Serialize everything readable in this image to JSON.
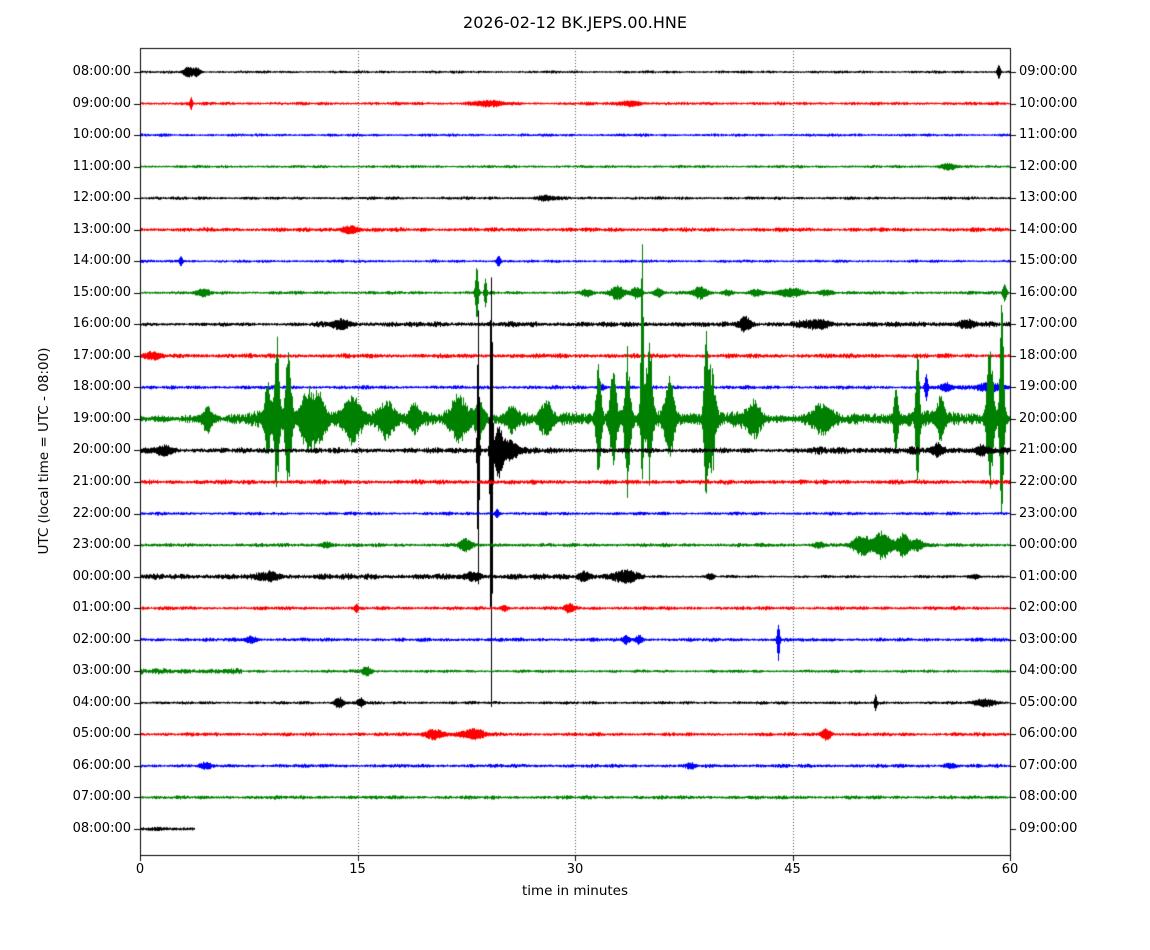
{
  "chart_data": {
    "type": "seismogram",
    "title": "2026-02-12 BK.JEPS.00.HNE",
    "xlabel": "time in minutes",
    "ylabel": "UTC (local time = UTC - 08:00)",
    "x_ticks": [
      "0",
      "15",
      "30",
      "45",
      "60"
    ],
    "x_tick_values": [
      0,
      15,
      30,
      45,
      60
    ],
    "grid_minutes": [
      15,
      30,
      45
    ],
    "xlim": [
      0,
      60
    ],
    "minutes_per_line": 60,
    "legend_position": "none",
    "grid": "vertical-dotted",
    "trace_colors": {
      "k": "#000000",
      "r": "#ff0000",
      "b": "#0000ff",
      "g": "#008000"
    },
    "rows": [
      {
        "left": "08:00:00",
        "right": "09:00:00",
        "c": "k",
        "amp": 1.3,
        "events": [
          [
            3.3,
            6,
            0.35
          ],
          [
            3.9,
            4.5,
            0.25
          ],
          [
            59.2,
            7,
            0.12
          ]
        ]
      },
      {
        "left": "09:00:00",
        "right": "10:00:00",
        "c": "r",
        "amp": 1.6,
        "events": [
          [
            3.5,
            6,
            0.1
          ],
          [
            24,
            2.6,
            1.2
          ],
          [
            33.8,
            3,
            0.7
          ]
        ]
      },
      {
        "left": "10:00:00",
        "right": "11:00:00",
        "c": "b",
        "amp": 1.4,
        "events": []
      },
      {
        "left": "11:00:00",
        "right": "12:00:00",
        "c": "g",
        "amp": 1.4,
        "events": [
          [
            55.7,
            3.5,
            0.6
          ]
        ]
      },
      {
        "left": "12:00:00",
        "right": "13:00:00",
        "c": "k",
        "amp": 1.5,
        "events": [
          [
            28,
            2.5,
            0.7
          ]
        ]
      },
      {
        "left": "13:00:00",
        "right": "14:00:00",
        "c": "r",
        "amp": 2.0,
        "events": [
          [
            14.5,
            4,
            0.6
          ]
        ]
      },
      {
        "left": "14:00:00",
        "right": "15:00:00",
        "c": "b",
        "amp": 1.4,
        "events": [
          [
            2.8,
            4.5,
            0.12
          ],
          [
            24.7,
            5,
            0.15
          ]
        ]
      },
      {
        "left": "15:00:00",
        "right": "16:00:00",
        "c": "g",
        "amp": 1.6,
        "events": [
          [
            4.3,
            3.5,
            0.5
          ],
          [
            23.2,
            26,
            0.12
          ],
          [
            23.8,
            14,
            0.1
          ],
          [
            30.8,
            3,
            0.4
          ],
          [
            32.9,
            7,
            0.5
          ],
          [
            34.2,
            6,
            0.4
          ],
          [
            35.7,
            4,
            0.3
          ],
          [
            38.6,
            6,
            0.5
          ],
          [
            40.5,
            3,
            0.4
          ],
          [
            42.5,
            3,
            0.5
          ],
          [
            44.9,
            4.5,
            0.8
          ],
          [
            47.3,
            3,
            0.5
          ],
          [
            59.6,
            8,
            0.15
          ]
        ]
      },
      {
        "left": "16:00:00",
        "right": "17:00:00",
        "c": "k",
        "segs": [
          [
            0,
            12,
            1.8
          ],
          [
            12,
            60,
            2.5
          ]
        ],
        "events": [
          [
            13.8,
            4,
            0.7
          ],
          [
            41.7,
            8,
            0.45
          ],
          [
            46.5,
            4,
            1.0
          ],
          [
            57,
            3.5,
            0.7
          ]
        ]
      },
      {
        "left": "17:00:00",
        "right": "18:00:00",
        "c": "r",
        "amp": 2.2,
        "events": [
          [
            0.8,
            3,
            0.7
          ]
        ]
      },
      {
        "left": "18:00:00",
        "right": "19:00:00",
        "c": "b",
        "amp": 1.8,
        "events": [
          [
            31.8,
            3,
            0.3
          ],
          [
            54.2,
            13,
            0.12
          ],
          [
            55.6,
            4,
            0.4
          ],
          [
            58.6,
            4.5,
            1.0
          ]
        ]
      },
      {
        "left": "19:00:00",
        "right": "20:00:00",
        "c": "g",
        "segs": [
          [
            0,
            3,
            3
          ],
          [
            3,
            7,
            4.5
          ],
          [
            7,
            16,
            7
          ],
          [
            16,
            30,
            6.5
          ],
          [
            30,
            42,
            8
          ],
          [
            42,
            50,
            5.5
          ],
          [
            50,
            60,
            7
          ]
        ],
        "events": [
          [
            4.6,
            12,
            0.4
          ],
          [
            8.8,
            35,
            0.25
          ],
          [
            9.4,
            85,
            0.2,
            75
          ],
          [
            10.2,
            65,
            0.25
          ],
          [
            11.6,
            30,
            0.6
          ],
          [
            12.4,
            20,
            0.4
          ],
          [
            14.6,
            22,
            0.7
          ],
          [
            17,
            18,
            0.6
          ],
          [
            18.9,
            14,
            0.4
          ],
          [
            22,
            24,
            0.6
          ],
          [
            23.4,
            18,
            0.35
          ],
          [
            25.6,
            12,
            0.4
          ],
          [
            28,
            14,
            0.5
          ],
          [
            31.6,
            55,
            0.2
          ],
          [
            32.6,
            45,
            0.25
          ],
          [
            33.6,
            70,
            0.2,
            95
          ],
          [
            34.6,
            200,
            0.1,
            60
          ],
          [
            35.1,
            90,
            0.25,
            60
          ],
          [
            36.5,
            40,
            0.35
          ],
          [
            39,
            85,
            0.16,
            70
          ],
          [
            39.4,
            55,
            0.25
          ],
          [
            42.3,
            18,
            0.5
          ],
          [
            47,
            14,
            0.7
          ],
          [
            52.1,
            30,
            0.16
          ],
          [
            53.6,
            65,
            0.15
          ],
          [
            55.2,
            25,
            0.25
          ],
          [
            58.6,
            80,
            0.25
          ],
          [
            59.4,
            115,
            0.16,
            100
          ]
        ]
      },
      {
        "left": "20:00:00",
        "right": "21:00:00",
        "c": "k",
        "segs": [
          [
            0,
            22,
            2.6
          ],
          [
            22,
            30,
            3
          ],
          [
            30,
            46,
            2.4
          ],
          [
            46,
            60,
            3.4
          ]
        ],
        "events": [
          [
            1.6,
            5,
            0.6
          ],
          [
            23.3,
            145,
            0.08,
            140
          ],
          [
            24.2,
            190,
            0.1,
            262
          ],
          [
            24.7,
            28,
            0.3
          ],
          [
            25.5,
            10,
            0.6
          ],
          [
            55,
            5,
            0.4
          ],
          [
            58,
            4,
            0.5
          ]
        ]
      },
      {
        "left": "21:00:00",
        "right": "22:00:00",
        "c": "r",
        "amp": 2.2,
        "events": []
      },
      {
        "left": "22:00:00",
        "right": "23:00:00",
        "c": "b",
        "amp": 1.6,
        "events": [
          [
            24.6,
            4,
            0.15
          ]
        ]
      },
      {
        "left": "23:00:00",
        "right": "00:00:00",
        "c": "g",
        "amp": 1.8,
        "events": [
          [
            12.8,
            3,
            0.4
          ],
          [
            22.4,
            7,
            0.4
          ],
          [
            46.8,
            3,
            0.4
          ],
          [
            49.8,
            10,
            0.7
          ],
          [
            51.2,
            14,
            0.6
          ],
          [
            52.6,
            12,
            0.5
          ],
          [
            53.6,
            6,
            0.4
          ]
        ]
      },
      {
        "left": "00:00:00",
        "right": "01:00:00",
        "c": "k",
        "segs": [
          [
            0,
            30,
            2.8
          ],
          [
            30,
            34.8,
            3.2
          ],
          [
            34.8,
            60,
            1.4
          ]
        ],
        "events": [
          [
            8.8,
            4,
            0.7
          ],
          [
            23,
            4,
            0.5
          ],
          [
            30.6,
            5,
            0.4
          ],
          [
            33.4,
            6,
            0.6
          ],
          [
            39.3,
            3,
            0.25
          ],
          [
            57.5,
            2.5,
            0.4
          ]
        ]
      },
      {
        "left": "01:00:00",
        "right": "02:00:00",
        "c": "r",
        "amp": 1.8,
        "events": [
          [
            14.9,
            3,
            0.15
          ],
          [
            25.1,
            3,
            0.25
          ],
          [
            29.6,
            4.5,
            0.35
          ]
        ]
      },
      {
        "left": "02:00:00",
        "right": "03:00:00",
        "c": "b",
        "amp": 1.8,
        "events": [
          [
            7.6,
            3.5,
            0.4
          ],
          [
            33.5,
            4.5,
            0.25
          ],
          [
            34.4,
            4,
            0.25
          ],
          [
            44,
            15,
            0.1,
            20
          ]
        ]
      },
      {
        "left": "03:00:00",
        "right": "04:00:00",
        "c": "g",
        "segs": [
          [
            0,
            7,
            2.8
          ],
          [
            7,
            60,
            1.5
          ]
        ],
        "events": [
          [
            15.6,
            5,
            0.35
          ]
        ]
      },
      {
        "left": "04:00:00",
        "right": "05:00:00",
        "c": "k",
        "amp": 1.5,
        "events": [
          [
            13.7,
            5.5,
            0.35
          ],
          [
            15.2,
            5,
            0.25
          ],
          [
            50.7,
            7,
            0.1
          ],
          [
            58.3,
            4,
            0.7
          ]
        ]
      },
      {
        "left": "05:00:00",
        "right": "06:00:00",
        "c": "r",
        "amp": 1.8,
        "events": [
          [
            20.3,
            5,
            0.7
          ],
          [
            22.9,
            5,
            0.9
          ],
          [
            47.3,
            6,
            0.35
          ]
        ]
      },
      {
        "left": "06:00:00",
        "right": "07:00:00",
        "c": "b",
        "amp": 1.8,
        "events": [
          [
            4.5,
            2.5,
            0.4
          ],
          [
            38,
            2.5,
            0.3
          ],
          [
            55.8,
            2.5,
            0.4
          ]
        ]
      },
      {
        "left": "07:00:00",
        "right": "08:00:00",
        "c": "g",
        "amp": 1.8,
        "events": []
      },
      {
        "left": "08:00:00",
        "right": "09:00:00",
        "c": "k",
        "amp": 2.2,
        "t_end": 3.7,
        "events": []
      }
    ]
  }
}
